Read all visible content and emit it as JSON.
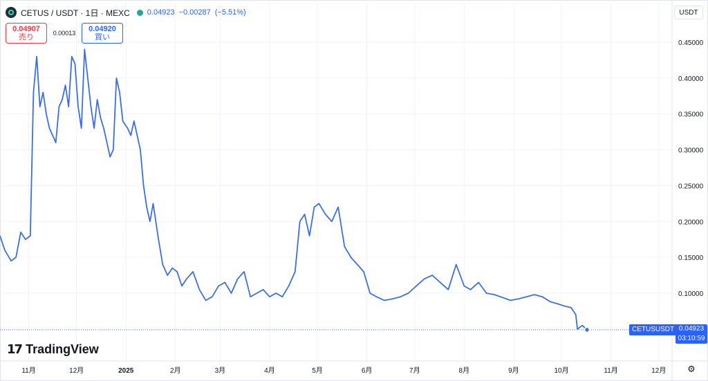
{
  "header": {
    "symbol_title": "CETUS / USDT · 1日 · MEXC",
    "last": "0.04923",
    "change": "−0.00287",
    "change_pct": "(−5.51%)",
    "coin_icon": "cetus-coin-icon",
    "status_color": "#26a69a"
  },
  "trade": {
    "sell_price": "0.04907",
    "sell_label": "売り",
    "spread": "0.00013",
    "buy_price": "0.04920",
    "buy_label": "買い"
  },
  "currency": "USDT",
  "logo": {
    "mark": "17",
    "text": "TradingView"
  },
  "price_tag": {
    "symbol": "CETUSUSDT",
    "price": "0.04923",
    "countdown": "03:10:59"
  },
  "colors": {
    "line": "#3a6fe0",
    "accent": "#2962ff",
    "sell": "#f23645",
    "grid": "#f0f3fa"
  },
  "chart_data": {
    "type": "line",
    "title": "",
    "xlabel": "",
    "ylabel": "",
    "ylim": [
      0.025,
      0.47
    ],
    "y_ticks": [
      "0.10000",
      "0.15000",
      "0.20000",
      "0.25000",
      "0.30000",
      "0.35000",
      "0.40000",
      "0.45000"
    ],
    "x_ticks": [
      "11月",
      "12月",
      "2025",
      "2月",
      "3月",
      "4月",
      "5月",
      "6月",
      "7月",
      "8月",
      "9月",
      "10月",
      "11月",
      "12月"
    ],
    "grid": true,
    "series": [
      {
        "x": [
          "2024-10-14",
          "2024-10-17",
          "2024-10-21",
          "2024-10-24",
          "2024-10-27",
          "2024-10-30",
          "2024-11-02",
          "2024-11-04",
          "2024-11-06",
          "2024-11-08",
          "2024-11-10",
          "2024-11-12",
          "2024-11-14",
          "2024-11-16",
          "2024-11-18",
          "2024-11-20",
          "2024-11-22",
          "2024-11-24",
          "2024-11-26",
          "2024-11-28",
          "2024-11-30",
          "2024-12-02",
          "2024-12-04",
          "2024-12-06",
          "2024-12-08",
          "2024-12-10",
          "2024-12-12",
          "2024-12-14",
          "2024-12-16",
          "2024-12-18",
          "2024-12-20",
          "2024-12-22",
          "2024-12-24",
          "2024-12-26",
          "2024-12-28",
          "2024-12-30",
          "2025-01-02",
          "2025-01-04",
          "2025-01-06",
          "2025-01-08",
          "2025-01-10",
          "2025-01-12",
          "2025-01-14",
          "2025-01-16",
          "2025-01-18",
          "2025-01-21",
          "2025-01-24",
          "2025-01-27",
          "2025-01-30",
          "2025-02-02",
          "2025-02-05",
          "2025-02-08",
          "2025-02-12",
          "2025-02-16",
          "2025-02-20",
          "2025-02-24",
          "2025-02-28",
          "2025-03-04",
          "2025-03-08",
          "2025-03-12",
          "2025-03-16",
          "2025-03-20",
          "2025-03-24",
          "2025-03-28",
          "2025-04-01",
          "2025-04-05",
          "2025-04-09",
          "2025-04-13",
          "2025-04-17",
          "2025-04-20",
          "2025-04-23",
          "2025-04-26",
          "2025-04-29",
          "2025-05-02",
          "2025-05-06",
          "2025-05-10",
          "2025-05-14",
          "2025-05-18",
          "2025-05-22",
          "2025-05-26",
          "2025-05-30",
          "2025-06-03",
          "2025-06-07",
          "2025-06-12",
          "2025-06-17",
          "2025-06-22",
          "2025-06-27",
          "2025-07-02",
          "2025-07-07",
          "2025-07-12",
          "2025-07-17",
          "2025-07-22",
          "2025-07-27",
          "2025-08-01",
          "2025-08-05",
          "2025-08-10",
          "2025-08-15",
          "2025-08-20",
          "2025-08-25",
          "2025-08-30",
          "2025-09-04",
          "2025-09-09",
          "2025-09-14",
          "2025-09-19",
          "2025-09-24",
          "2025-09-29",
          "2025-10-03",
          "2025-10-07",
          "2025-10-10",
          "2025-10-11",
          "2025-10-14",
          "2025-10-17"
        ],
        "values": [
          0.18,
          0.16,
          0.145,
          0.15,
          0.185,
          0.175,
          0.18,
          0.38,
          0.43,
          0.36,
          0.38,
          0.35,
          0.33,
          0.32,
          0.31,
          0.36,
          0.37,
          0.39,
          0.36,
          0.43,
          0.42,
          0.36,
          0.33,
          0.44,
          0.4,
          0.36,
          0.33,
          0.37,
          0.345,
          0.33,
          0.31,
          0.29,
          0.3,
          0.4,
          0.38,
          0.34,
          0.33,
          0.32,
          0.34,
          0.32,
          0.3,
          0.25,
          0.22,
          0.2,
          0.225,
          0.18,
          0.14,
          0.125,
          0.135,
          0.13,
          0.11,
          0.12,
          0.13,
          0.105,
          0.09,
          0.095,
          0.11,
          0.115,
          0.1,
          0.12,
          0.13,
          0.095,
          0.1,
          0.105,
          0.095,
          0.1,
          0.095,
          0.11,
          0.13,
          0.2,
          0.21,
          0.18,
          0.22,
          0.225,
          0.21,
          0.2,
          0.22,
          0.165,
          0.15,
          0.14,
          0.13,
          0.1,
          0.095,
          0.09,
          0.092,
          0.095,
          0.1,
          0.11,
          0.12,
          0.125,
          0.115,
          0.105,
          0.14,
          0.11,
          0.105,
          0.115,
          0.1,
          0.098,
          0.094,
          0.09,
          0.092,
          0.095,
          0.098,
          0.095,
          0.088,
          0.085,
          0.082,
          0.08,
          0.07,
          0.05,
          0.055,
          0.049
        ]
      }
    ]
  }
}
